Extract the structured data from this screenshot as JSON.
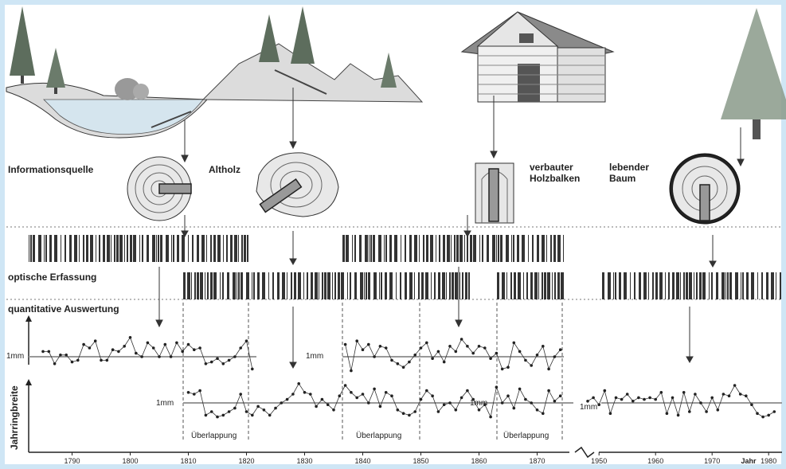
{
  "colors": {
    "frame": "#cfe6f5",
    "ink": "#222222",
    "tree": "#5d6d5d",
    "tree_light": "#8a9a8a",
    "hill": "#dcdcdc",
    "water": "#d5e5ee"
  },
  "labels": {
    "source": "Informationsquelle",
    "old_wood": "Altholz",
    "beam": "verbauter\nHolzbalken",
    "living_tree": "lebender\nBaum",
    "optical": "optische Erfassung",
    "quantitative": "quantitative Auswertung",
    "y_axis": "Jahrringbreite",
    "one_mm": "1mm",
    "overlap": "Überlappung",
    "year_unit": "Jahr"
  },
  "chart_data": {
    "type": "line",
    "x_ticks_left": [
      "1790",
      "1800",
      "1810",
      "1820",
      "1830",
      "1840",
      "1850",
      "1860",
      "1870"
    ],
    "x_ticks_right": [
      "1950",
      "1960",
      "1970",
      "1980"
    ],
    "xlabel": "Jahr",
    "ylabel": "Jahrringbreite",
    "series": [
      {
        "x": [
          1785,
          1786,
          1787,
          1788,
          1789,
          1790,
          1791,
          1792,
          1793,
          1794,
          1795,
          1796,
          1797,
          1798,
          1799,
          1800,
          1801,
          1802,
          1803,
          1804,
          1805,
          1806,
          1807,
          1808,
          1809,
          1810,
          1811,
          1812,
          1813,
          1814,
          1815,
          1816,
          1817,
          1818,
          1819,
          1820,
          1821
        ],
        "values": [
          1.3,
          1.3,
          0.6,
          1.1,
          1.1,
          0.7,
          0.8,
          1.7,
          1.5,
          1.9,
          0.8,
          0.8,
          1.4,
          1.3,
          1.6,
          2.1,
          1.2,
          1.0,
          1.8,
          1.5,
          1.0,
          1.7,
          1.0,
          1.8,
          1.3,
          1.7,
          1.4,
          1.5,
          0.6,
          0.7,
          0.9,
          0.6,
          0.8,
          1.0,
          1.5,
          1.9,
          0.3
        ]
      },
      {
        "x": [
          1810,
          1811,
          1812,
          1813,
          1814,
          1815,
          1816,
          1817,
          1818,
          1819,
          1820,
          1821,
          1822,
          1823,
          1824,
          1825,
          1826,
          1827,
          1828,
          1829,
          1830,
          1831,
          1832,
          1833,
          1834,
          1835,
          1836,
          1837,
          1838,
          1839,
          1840,
          1841,
          1842,
          1843,
          1844,
          1845,
          1846,
          1847,
          1848,
          1849,
          1850,
          1851,
          1852,
          1853,
          1854,
          1855,
          1856,
          1857,
          1858,
          1859,
          1860,
          1861,
          1862,
          1863,
          1864,
          1865,
          1866,
          1867,
          1868,
          1869,
          1870,
          1871,
          1872,
          1873,
          1874
        ],
        "values": [
          1.6,
          1.5,
          1.7,
          0.3,
          0.5,
          0.2,
          0.3,
          0.5,
          0.7,
          1.5,
          0.5,
          0.3,
          0.8,
          0.6,
          0.3,
          0.7,
          1.0,
          1.2,
          1.5,
          2.1,
          1.6,
          1.5,
          0.8,
          1.2,
          0.9,
          0.6,
          1.4,
          2.0,
          1.6,
          1.3,
          1.5,
          1.0,
          1.8,
          0.8,
          1.6,
          1.4,
          0.6,
          0.4,
          0.3,
          0.5,
          1.2,
          1.7,
          1.4,
          0.5,
          0.9,
          1.0,
          0.6,
          1.3,
          1.7,
          1.2,
          0.6,
          0.9,
          0.2,
          1.9,
          1.0,
          1.4,
          0.7,
          1.8,
          1.2,
          1.0,
          0.6,
          0.4,
          1.7,
          1.1,
          1.4
        ]
      },
      {
        "x": [
          1837,
          1838,
          1839,
          1840,
          1841,
          1842,
          1843,
          1844,
          1845,
          1846,
          1847,
          1848,
          1849,
          1850,
          1851,
          1852,
          1853,
          1854,
          1855,
          1856,
          1857,
          1858,
          1859,
          1860,
          1861,
          1862,
          1863,
          1864,
          1865,
          1866,
          1867,
          1868,
          1869,
          1870,
          1871,
          1872,
          1873,
          1874
        ],
        "values": [
          1.7,
          0.2,
          1.9,
          1.4,
          1.7,
          1.0,
          1.6,
          1.5,
          0.8,
          0.6,
          0.4,
          0.7,
          1.1,
          1.5,
          1.8,
          0.9,
          1.3,
          0.7,
          1.6,
          1.3,
          2.0,
          1.6,
          1.2,
          1.6,
          1.5,
          0.9,
          1.2,
          0.3,
          0.4,
          1.8,
          1.3,
          0.8,
          0.5,
          1.1,
          1.6,
          0.3,
          1.0,
          1.4
        ]
      },
      {
        "x": [
          1948,
          1949,
          1950,
          1951,
          1952,
          1953,
          1954,
          1955,
          1956,
          1957,
          1958,
          1959,
          1960,
          1961,
          1962,
          1963,
          1964,
          1965,
          1966,
          1967,
          1968,
          1969,
          1970,
          1971,
          1972,
          1973,
          1974,
          1975,
          1976,
          1977,
          1978,
          1979,
          1980,
          1981
        ],
        "values": [
          1.1,
          1.3,
          0.9,
          1.7,
          0.4,
          1.3,
          1.2,
          1.5,
          1.1,
          1.3,
          1.2,
          1.3,
          1.2,
          1.6,
          0.4,
          1.3,
          0.3,
          1.6,
          0.5,
          1.5,
          1.0,
          0.5,
          1.3,
          0.6,
          1.5,
          1.4,
          2.0,
          1.5,
          1.4,
          0.9,
          0.4,
          0.2,
          0.3,
          0.5
        ]
      }
    ]
  }
}
